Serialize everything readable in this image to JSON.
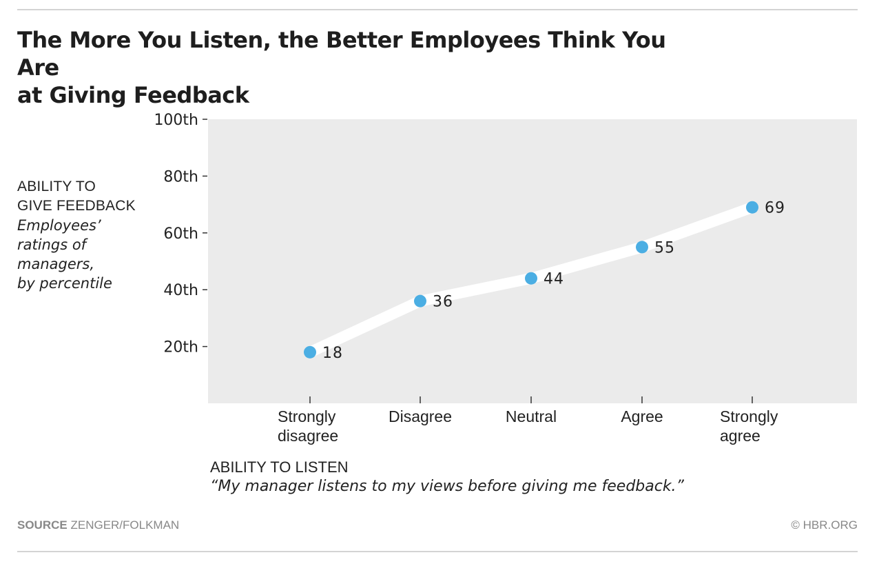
{
  "chart_data": {
    "type": "line",
    "title": "The More You Listen, the Better Employees Think You Are at Giving Feedback",
    "title_lines": [
      "The More You Listen, the Better Employees Think You Are",
      "at Giving Feedback"
    ],
    "categories": [
      "Strongly disagree",
      "Disagree",
      "Neutral",
      "Agree",
      "Strongly agree"
    ],
    "category_lines": [
      [
        "Strongly",
        "disagree"
      ],
      [
        "Disagree"
      ],
      [
        "Neutral"
      ],
      [
        "Agree"
      ],
      [
        "Strongly",
        "agree"
      ]
    ],
    "values": [
      18,
      36,
      44,
      55,
      69
    ],
    "data_labels": [
      "18",
      "36",
      "44",
      "55",
      "69"
    ],
    "ylim": [
      0,
      100
    ],
    "yticks": [
      20,
      40,
      60,
      80,
      100
    ],
    "ytick_labels": [
      "20th",
      "40th",
      "60th",
      "80th",
      "100th"
    ],
    "ylabel": {
      "head_lines": [
        "ABILITY TO",
        "GIVE FEEDBACK"
      ],
      "sub_lines": [
        "Employees’",
        "ratings of",
        "managers,",
        "by percentile"
      ]
    },
    "xlabel": {
      "head": "ABILITY TO LISTEN",
      "sub": "“My manager listens to my views before giving me feedback.”"
    },
    "grid": false,
    "legend": "none",
    "colors": {
      "point": "#4baee3",
      "line": "#ffffff",
      "plot_background": "#ebebeb",
      "text": "#222222",
      "muted_text": "#888888",
      "rule": "#d3d3d3"
    }
  },
  "footer": {
    "source_label": "SOURCE",
    "source_value": "ZENGER/FOLKMAN",
    "credit": "© HBR.ORG"
  }
}
